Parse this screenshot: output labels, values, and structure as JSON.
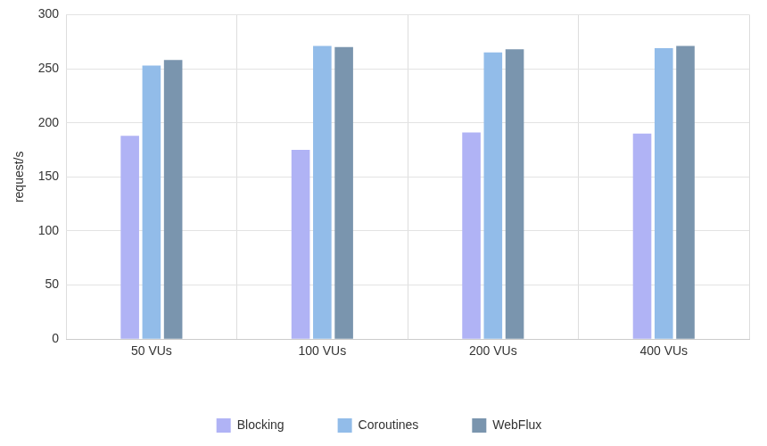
{
  "chart_data": {
    "type": "bar",
    "y_label": "request/s",
    "categories": [
      "50 VUs",
      "100 VUs",
      "200 VUs",
      "400 VUs"
    ],
    "series": [
      {
        "name": "Blocking",
        "color": "#b0b3f5",
        "values": [
          188,
          175,
          191,
          190
        ]
      },
      {
        "name": "Coroutines",
        "color": "#92bce9",
        "values": [
          253,
          271,
          265,
          269
        ]
      },
      {
        "name": "WebFlux",
        "color": "#7a95ae",
        "values": [
          258,
          270,
          268,
          271
        ]
      }
    ],
    "ylim": [
      0,
      300
    ],
    "yticks": [
      0,
      50,
      100,
      150,
      200,
      250,
      300
    ],
    "grid": true,
    "legend": "bottom"
  }
}
